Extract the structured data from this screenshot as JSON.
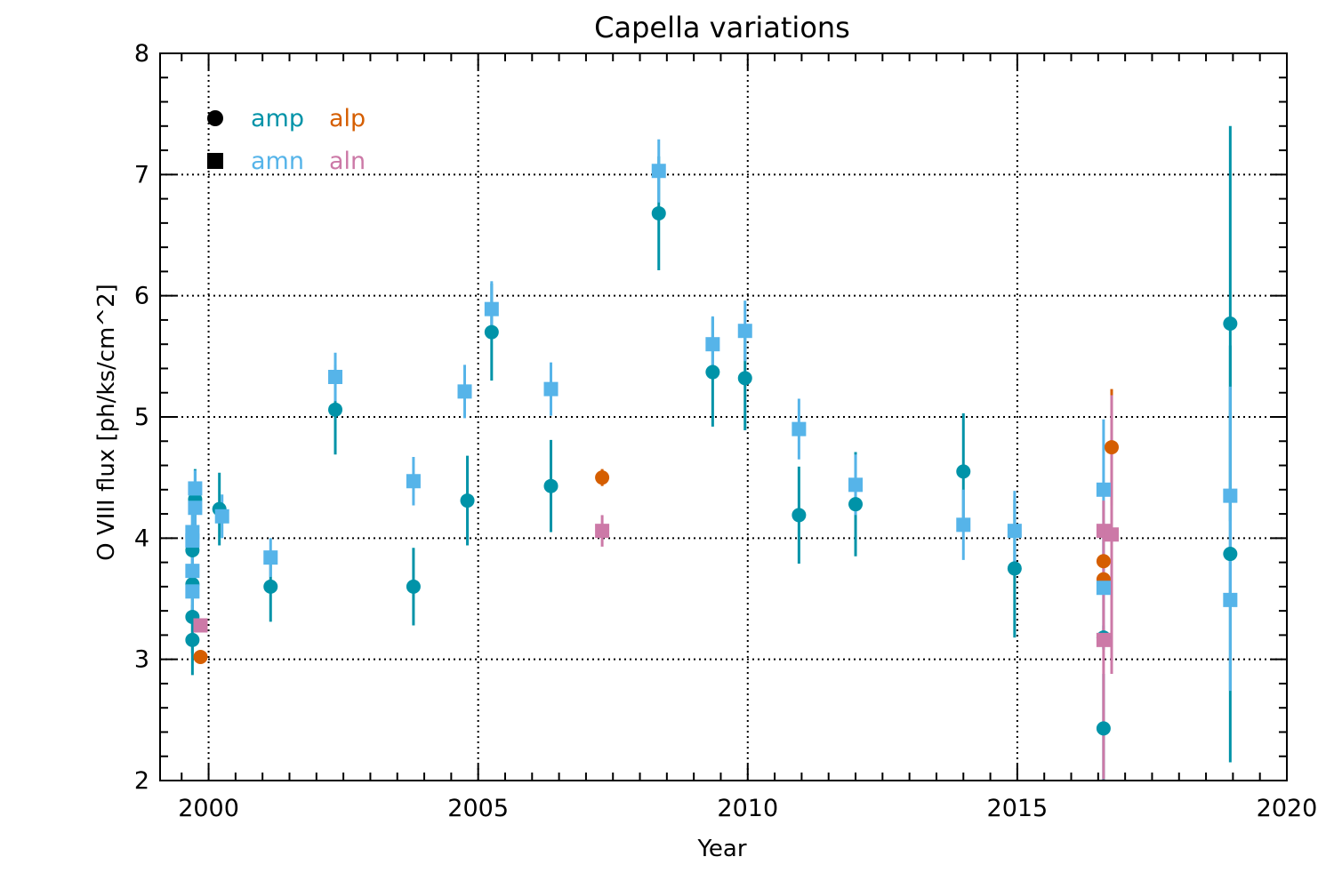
{
  "chart_data": {
    "type": "scatter",
    "title": "Capella variations",
    "xlabel": "Year",
    "ylabel": "O VIII flux [ph/ks/cm^2]",
    "xlim": [
      1999.1,
      2020.0
    ],
    "ylim": [
      2,
      8
    ],
    "xticks": [
      2000,
      2005,
      2010,
      2015,
      2020
    ],
    "yticks": [
      2,
      3,
      4,
      5,
      6,
      7,
      8
    ],
    "x_minor_step": 0.5,
    "y_minor_step": 0.2,
    "grid": "dotted",
    "legend_position": "top-left",
    "legend": {
      "markers": [
        {
          "shape": "circle",
          "entries": [
            "amp",
            "alp"
          ]
        },
        {
          "shape": "square",
          "entries": [
            "amn",
            "aln"
          ]
        }
      ]
    },
    "series": [
      {
        "name": "amp",
        "marker": "circle",
        "color": "#0093A8",
        "points": [
          {
            "x": 1999.7,
            "y": 3.16,
            "err": 0.29
          },
          {
            "x": 1999.7,
            "y": 3.35,
            "err": 0.3
          },
          {
            "x": 1999.7,
            "y": 3.62,
            "err": 0.3
          },
          {
            "x": 1999.7,
            "y": 3.9,
            "err": 0.3
          },
          {
            "x": 1999.75,
            "y": 4.32,
            "err": 0.25
          },
          {
            "x": 2000.2,
            "y": 4.24,
            "err": 0.3
          },
          {
            "x": 2001.15,
            "y": 3.6,
            "err": 0.29
          },
          {
            "x": 2002.35,
            "y": 5.06,
            "err": 0.37
          },
          {
            "x": 2003.8,
            "y": 3.6,
            "err": 0.32
          },
          {
            "x": 2004.8,
            "y": 4.31,
            "err": 0.37
          },
          {
            "x": 2005.25,
            "y": 5.7,
            "err": 0.4
          },
          {
            "x": 2006.35,
            "y": 4.43,
            "err": 0.38
          },
          {
            "x": 2008.35,
            "y": 6.68,
            "err": 0.47
          },
          {
            "x": 2009.35,
            "y": 5.37,
            "err": 0.45
          },
          {
            "x": 2009.95,
            "y": 5.32,
            "err": 0.43
          },
          {
            "x": 2010.95,
            "y": 4.19,
            "err": 0.4
          },
          {
            "x": 2012.0,
            "y": 4.28,
            "err": 0.43
          },
          {
            "x": 2014.0,
            "y": 4.55,
            "err": 0.48
          },
          {
            "x": 2014.95,
            "y": 3.75,
            "err": 0.57
          },
          {
            "x": 2016.6,
            "y": 3.18,
            "err": 0.1
          },
          {
            "x": 2016.6,
            "y": 2.43,
            "err": 0.45
          },
          {
            "x": 2018.95,
            "y": 5.77,
            "err": 1.63
          },
          {
            "x": 2018.95,
            "y": 3.87,
            "err": 1.72
          }
        ]
      },
      {
        "name": "alp",
        "marker": "circle",
        "color": "#D55E00",
        "points": [
          {
            "x": 1999.85,
            "y": 3.02,
            "err": 0.03
          },
          {
            "x": 2007.3,
            "y": 4.5,
            "err": 0.07
          },
          {
            "x": 2016.6,
            "y": 3.81,
            "err": 0.05
          },
          {
            "x": 2016.6,
            "y": 3.66,
            "err": 0.05
          },
          {
            "x": 2016.75,
            "y": 4.75,
            "err": 0.48
          }
        ]
      },
      {
        "name": "amn",
        "marker": "square",
        "color": "#56B4E9",
        "points": [
          {
            "x": 1999.7,
            "y": 3.56,
            "err": 0.2
          },
          {
            "x": 1999.7,
            "y": 3.73,
            "err": 0.2
          },
          {
            "x": 1999.7,
            "y": 3.98,
            "err": 0.2
          },
          {
            "x": 1999.7,
            "y": 4.05,
            "err": 0.2
          },
          {
            "x": 1999.75,
            "y": 4.25,
            "err": 0.2
          },
          {
            "x": 1999.75,
            "y": 4.41,
            "err": 0.15
          },
          {
            "x": 2000.25,
            "y": 4.18,
            "err": 0.18
          },
          {
            "x": 2001.15,
            "y": 3.84,
            "err": 0.16
          },
          {
            "x": 2002.35,
            "y": 5.33,
            "err": 0.2
          },
          {
            "x": 2003.8,
            "y": 4.47,
            "err": 0.2
          },
          {
            "x": 2004.75,
            "y": 5.21,
            "err": 0.22
          },
          {
            "x": 2005.25,
            "y": 5.89,
            "err": 0.23
          },
          {
            "x": 2006.35,
            "y": 5.23,
            "err": 0.22
          },
          {
            "x": 2008.35,
            "y": 7.03,
            "err": 0.26
          },
          {
            "x": 2009.35,
            "y": 5.6,
            "err": 0.23
          },
          {
            "x": 2009.95,
            "y": 5.71,
            "err": 0.25
          },
          {
            "x": 2010.95,
            "y": 4.9,
            "err": 0.25
          },
          {
            "x": 2012.0,
            "y": 4.44,
            "err": 0.25
          },
          {
            "x": 2014.0,
            "y": 4.11,
            "err": 0.29
          },
          {
            "x": 2014.95,
            "y": 4.06,
            "err": 0.33
          },
          {
            "x": 2016.6,
            "y": 4.4,
            "err": 0.58
          },
          {
            "x": 2016.6,
            "y": 3.59,
            "err": 0.5
          },
          {
            "x": 2018.95,
            "y": 4.35,
            "err": 0.9
          },
          {
            "x": 2018.95,
            "y": 3.49,
            "err": 0.75
          }
        ]
      },
      {
        "name": "aln",
        "marker": "square",
        "color": "#CC79A7",
        "points": [
          {
            "x": 1999.85,
            "y": 3.28,
            "err": 0.03
          },
          {
            "x": 2007.3,
            "y": 4.06,
            "err": 0.13
          },
          {
            "x": 2016.6,
            "y": 4.06,
            "err": 0.05
          },
          {
            "x": 2016.6,
            "y": 3.16,
            "err": 1.15
          },
          {
            "x": 2016.75,
            "y": 4.03,
            "err": 1.15
          }
        ]
      }
    ]
  }
}
